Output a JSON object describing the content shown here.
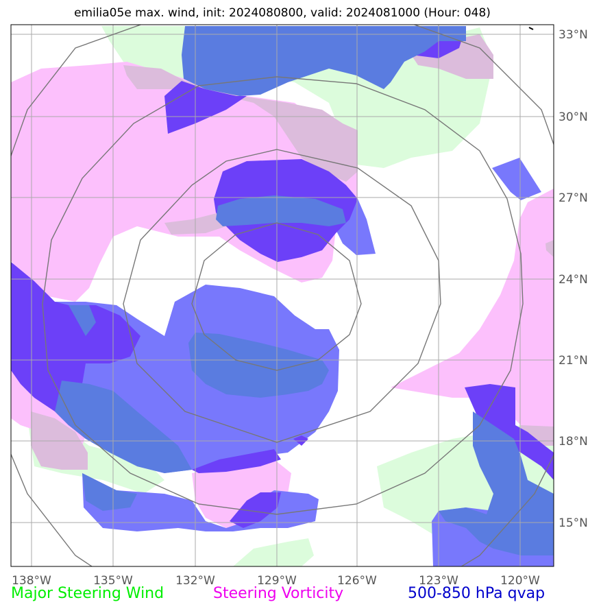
{
  "title": "emilia05e max. wind, init: 2024080800, valid: 2024081000 (Hour: 048)",
  "map": {
    "lon_labels": [
      "138°W",
      "135°W",
      "132°W",
      "129°W",
      "126°W",
      "123°W",
      "120°W"
    ],
    "lat_labels": [
      "33°N",
      "30°N",
      "27°N",
      "24°N",
      "21°N",
      "18°N",
      "15°N"
    ],
    "storm_center": {
      "lon": "129°W",
      "lat": "23°N"
    }
  },
  "legend": [
    {
      "label": "Major Steering Wind",
      "color": "#00ee00"
    },
    {
      "label": "Steering Vorticity",
      "color": "#ee00ee"
    },
    {
      "label": "500-850 hPa qvap",
      "color": "#0000cc"
    }
  ],
  "colors": {
    "steering_wind": "#dcfcdc",
    "steering_vorticity": "#fcc0fc",
    "overlap": "#dcbcdc",
    "qvap_medium": "#7878fc",
    "qvap_dark": "#6c40f8",
    "qvap_steel": "#5a7ce0",
    "gridline": "#aaaaaa",
    "range_ring": "#777777"
  }
}
